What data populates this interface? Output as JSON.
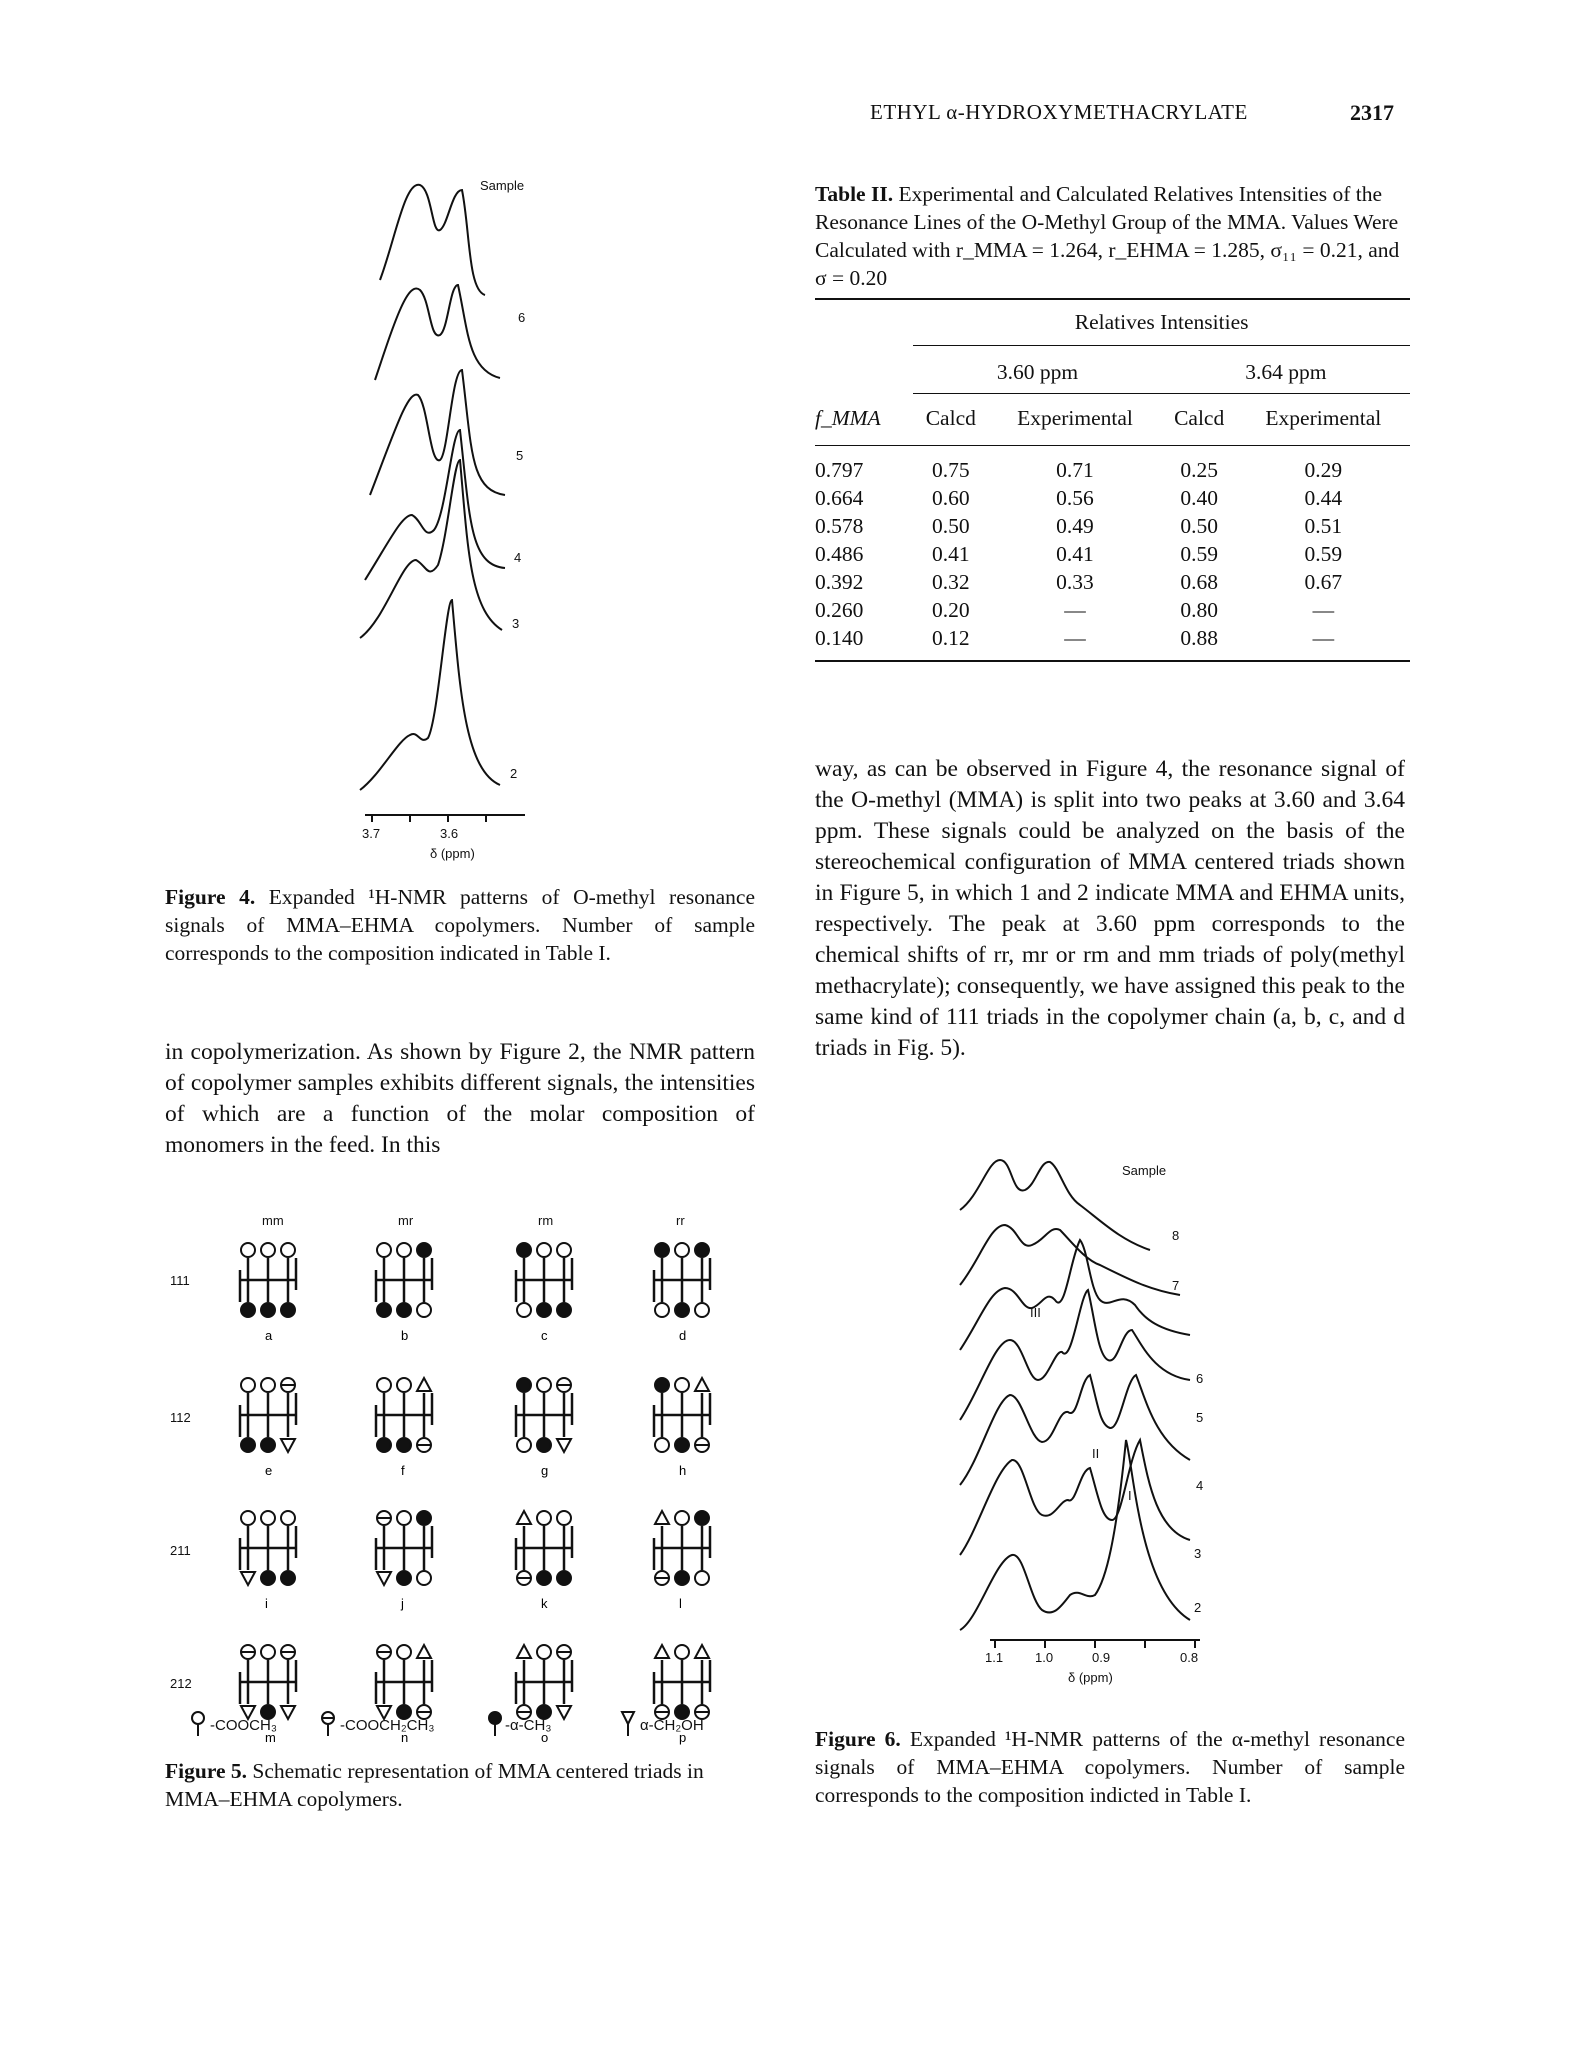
{
  "header": {
    "running_head": "ETHYL α-HYDROXYMETHACRYLATE",
    "page_number": "2317"
  },
  "figure4": {
    "sample_label": "Sample",
    "trace_labels": [
      "6",
      "5",
      "4",
      "3",
      "2"
    ],
    "axis_ticks": [
      "3.7",
      "3.6"
    ],
    "axis_label": "δ (ppm)",
    "caption_label": "Figure 4.",
    "caption_text": "Expanded ¹H-NMR patterns of O-methyl resonance signals of MMA–EHMA copolymers. Number of sample corresponds to the composition indicated in Table I."
  },
  "left_text": "in copolymerization. As shown by Figure 2, the NMR pattern of copolymer samples exhibits different signals, the intensities of which are a function of the molar composition of monomers in the feed. In this",
  "figure5": {
    "column_headers": [
      "mm",
      "mr",
      "rm",
      "rr"
    ],
    "row_labels": [
      "111",
      "112",
      "211",
      "212"
    ],
    "triad_letters": [
      "a",
      "b",
      "c",
      "d",
      "e",
      "f",
      "g",
      "h",
      "i",
      "j",
      "k",
      "l",
      "m",
      "n",
      "o",
      "p"
    ],
    "legend": [
      "-COOCH₃",
      "-COOCH₂CH₃",
      "-α-CH₃",
      "α-CH₂OH"
    ],
    "caption_label": "Figure 5.",
    "caption_text": "Schematic representation of MMA centered triads in MMA–EHMA copolymers."
  },
  "table2": {
    "caption_label": "Table II.",
    "caption_text": "Experimental and Calculated Relatives Intensities of the Resonance Lines of the O-Methyl Group of the MMA. Values Were Calculated with r_MMA = 1.264, r_EHMA = 1.285, σ₁₁ = 0.21, and σ = 0.20",
    "super_header": "Relatives Intensities",
    "group_headers": [
      "3.60 ppm",
      "3.64 ppm"
    ],
    "col_headers": [
      "f_MMA",
      "Calcd",
      "Experimental",
      "Calcd",
      "Experimental"
    ],
    "rows": [
      [
        "0.797",
        "0.75",
        "0.71",
        "0.25",
        "0.29"
      ],
      [
        "0.664",
        "0.60",
        "0.56",
        "0.40",
        "0.44"
      ],
      [
        "0.578",
        "0.50",
        "0.49",
        "0.50",
        "0.51"
      ],
      [
        "0.486",
        "0.41",
        "0.41",
        "0.59",
        "0.59"
      ],
      [
        "0.392",
        "0.32",
        "0.33",
        "0.68",
        "0.67"
      ],
      [
        "0.260",
        "0.20",
        "—",
        "0.80",
        "—"
      ],
      [
        "0.140",
        "0.12",
        "—",
        "0.88",
        "—"
      ]
    ]
  },
  "right_text": "way, as can be observed in Figure 4, the resonance signal of the O-methyl (MMA) is split into two peaks at 3.60 and 3.64 ppm. These signals could be analyzed on the basis of the stereochemical configuration of MMA centered triads shown in Figure 5, in which 1 and 2 indicate MMA and EHMA units, respectively. The peak at 3.60 ppm corresponds to the chemical shifts of rr, mr or rm and mm triads of poly(methyl methacrylate); consequently, we have assigned this peak to the same kind of 111 triads in the copolymer chain (a, b, c, and d triads in Fig. 5).",
  "figure6": {
    "sample_label": "Sample",
    "trace_labels": [
      "8",
      "7",
      "6",
      "5",
      "4",
      "3",
      "2"
    ],
    "peak_labels": [
      "III",
      "II",
      "I"
    ],
    "axis_ticks": [
      "1.1",
      "1.0",
      "0.9",
      "0.8"
    ],
    "axis_label": "δ (ppm)",
    "caption_label": "Figure 6.",
    "caption_text": "Expanded ¹H-NMR patterns of the α-methyl resonance signals of MMA–EHMA copolymers. Number of sample corresponds to the composition indicted in Table I."
  }
}
